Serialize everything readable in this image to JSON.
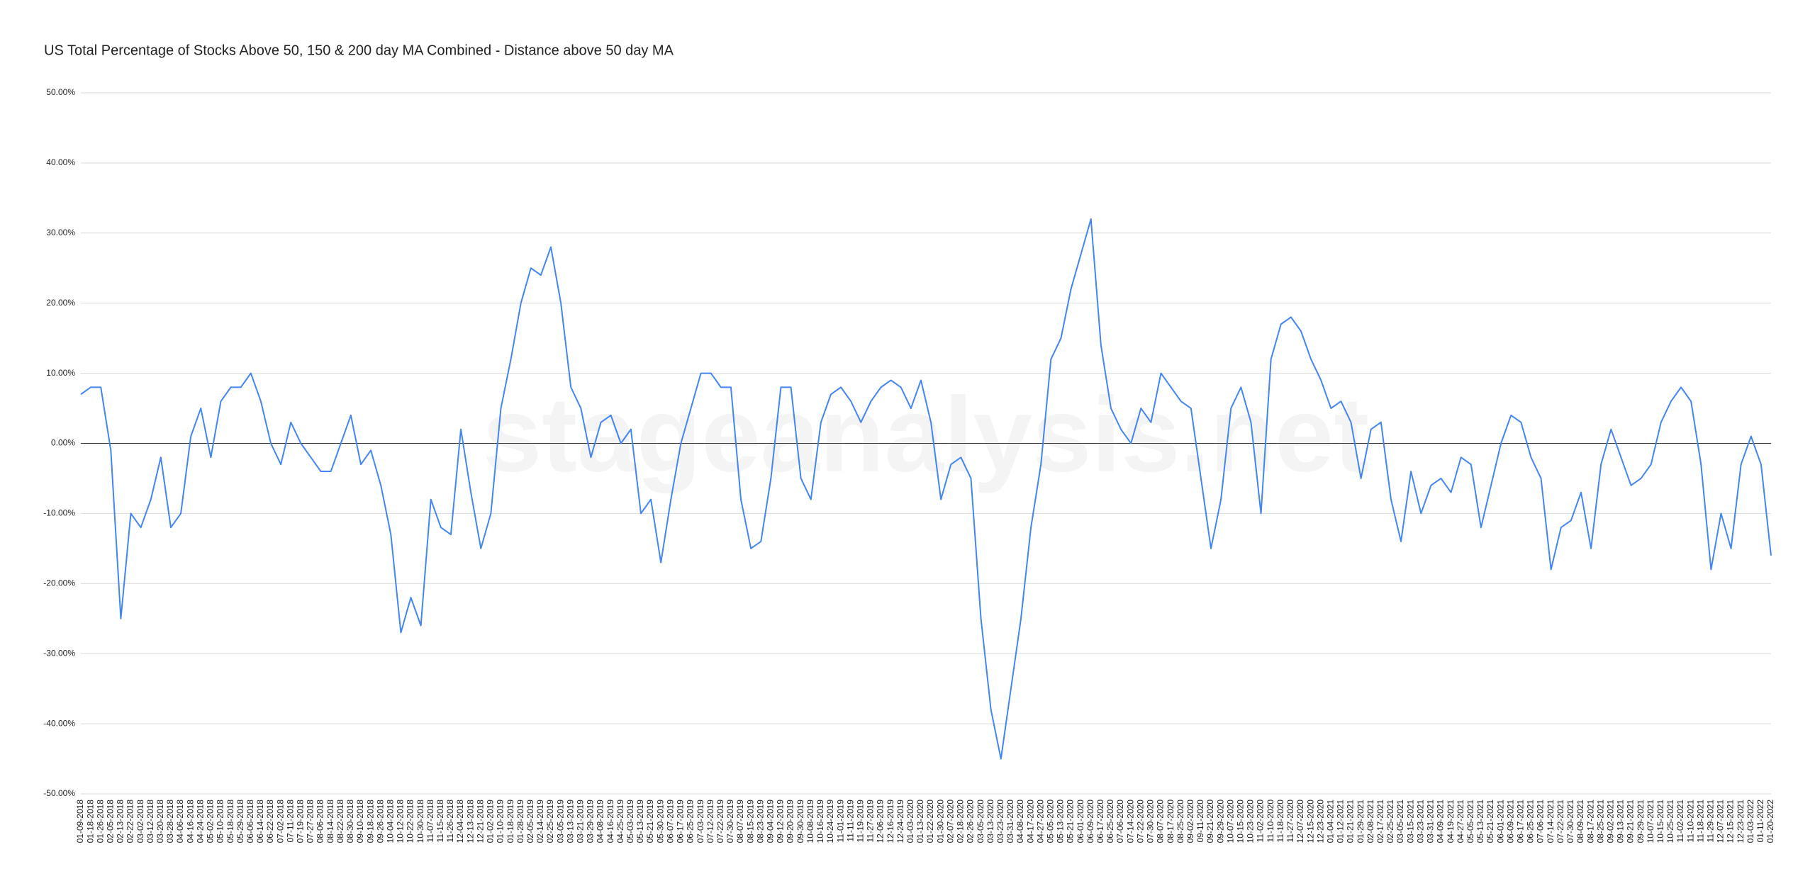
{
  "chart_data": {
    "type": "line",
    "title": "US Total Percentage of Stocks Above 50, 150 & 200 day MA Combined - Distance above 50 day MA",
    "watermark": "stageanalysis.net",
    "categories": [
      "01-09-2018",
      "01-18-2018",
      "01-26-2018",
      "02-05-2018",
      "02-13-2018",
      "02-22-2018",
      "03-02-2018",
      "03-12-2018",
      "03-20-2018",
      "03-28-2018",
      "04-06-2018",
      "04-16-2018",
      "04-24-2018",
      "05-02-2018",
      "05-10-2018",
      "05-18-2018",
      "05-29-2018",
      "06-06-2018",
      "06-14-2018",
      "06-22-2018",
      "07-02-2018",
      "07-11-2018",
      "07-19-2018",
      "07-27-2018",
      "08-06-2018",
      "08-14-2018",
      "08-22-2018",
      "08-30-2018",
      "09-10-2018",
      "09-18-2018",
      "09-26-2018",
      "10-04-2018",
      "10-12-2018",
      "10-22-2018",
      "10-30-2018",
      "11-07-2018",
      "11-15-2018",
      "11-26-2018",
      "12-04-2018",
      "12-13-2018",
      "12-21-2018",
      "01-02-2019",
      "01-10-2019",
      "01-18-2019",
      "01-28-2019",
      "02-05-2019",
      "02-14-2019",
      "02-25-2019",
      "03-05-2019",
      "03-13-2019",
      "03-21-2019",
      "03-29-2019",
      "04-08-2019",
      "04-16-2019",
      "04-25-2019",
      "05-03-2019",
      "05-13-2019",
      "05-21-2019",
      "05-30-2019",
      "06-07-2019",
      "06-17-2019",
      "06-25-2019",
      "07-03-2019",
      "07-12-2019",
      "07-22-2019",
      "07-30-2019",
      "08-07-2019",
      "08-15-2019",
      "08-23-2019",
      "09-04-2019",
      "09-12-2019",
      "09-20-2019",
      "09-30-2019",
      "10-08-2019",
      "10-16-2019",
      "10-24-2019",
      "11-01-2019",
      "11-11-2019",
      "11-19-2019",
      "11-27-2019",
      "12-06-2019",
      "12-16-2019",
      "12-24-2019",
      "01-03-2020",
      "01-13-2020",
      "01-22-2020",
      "01-30-2020",
      "02-07-2020",
      "02-18-2020",
      "02-26-2020",
      "03-05-2020",
      "03-13-2020",
      "03-23-2020",
      "03-31-2020",
      "04-08-2020",
      "04-17-2020",
      "04-27-2020",
      "05-05-2020",
      "05-13-2020",
      "05-21-2020",
      "06-01-2020",
      "06-09-2020",
      "06-17-2020",
      "06-25-2020",
      "07-06-2020",
      "07-14-2020",
      "07-22-2020",
      "07-30-2020",
      "08-07-2020",
      "08-17-2020",
      "08-25-2020",
      "09-02-2020",
      "09-11-2020",
      "09-21-2020",
      "09-29-2020",
      "10-07-2020",
      "10-15-2020",
      "10-23-2020",
      "11-02-2020",
      "11-10-2020",
      "11-18-2020",
      "11-27-2020",
      "12-07-2020",
      "12-15-2020",
      "12-23-2020",
      "01-04-2021",
      "01-12-2021",
      "01-21-2021",
      "01-29-2021",
      "02-08-2021",
      "02-17-2021",
      "02-25-2021",
      "03-05-2021",
      "03-15-2021",
      "03-23-2021",
      "03-31-2021",
      "04-09-2021",
      "04-19-2021",
      "04-27-2021",
      "05-05-2021",
      "05-13-2021",
      "05-21-2021",
      "06-01-2021",
      "06-09-2021",
      "06-17-2021",
      "06-25-2021",
      "07-06-2021",
      "07-14-2021",
      "07-22-2021",
      "07-30-2021",
      "08-09-2021",
      "08-17-2021",
      "08-25-2021",
      "09-02-2021",
      "09-13-2021",
      "09-21-2021",
      "09-29-2021",
      "10-07-2021",
      "10-15-2021",
      "10-25-2021",
      "11-02-2021",
      "11-10-2021",
      "11-18-2021",
      "11-29-2021",
      "12-07-2021",
      "12-15-2021",
      "12-23-2021",
      "01-03-2022",
      "01-11-2022",
      "01-20-2022"
    ],
    "series": [
      {
        "name": "Distance above 50 day MA",
        "color": "#4285f4",
        "values": [
          7,
          8,
          8,
          -1,
          -25,
          -10,
          -12,
          -8,
          -2,
          -12,
          -10,
          1,
          5,
          -2,
          6,
          8,
          8,
          10,
          6,
          0,
          -3,
          3,
          0,
          -2,
          -4,
          -4,
          0,
          4,
          -3,
          -1,
          -6,
          -13,
          -27,
          -22,
          -26,
          -8,
          -12,
          -13,
          2,
          -7,
          -15,
          -10,
          5,
          12,
          20,
          25,
          24,
          28,
          20,
          8,
          5,
          -2,
          3,
          4,
          0,
          2,
          -10,
          -8,
          -17,
          -8,
          0,
          5,
          10,
          10,
          8,
          8,
          -8,
          -15,
          -14,
          -5,
          8,
          8,
          -5,
          -8,
          3,
          7,
          8,
          6,
          3,
          6,
          8,
          9,
          8,
          5,
          9,
          3,
          -8,
          -3,
          -2,
          -5,
          -25,
          -38,
          -45,
          -35,
          -25,
          -12,
          -3,
          12,
          15,
          22,
          27,
          32,
          14,
          5,
          2,
          0,
          5,
          3,
          10,
          8,
          6,
          5,
          -5,
          -15,
          -8,
          5,
          8,
          3,
          -10,
          12,
          17,
          18,
          16,
          12,
          9,
          5,
          6,
          3,
          -5,
          2,
          3,
          -8,
          -14,
          -4,
          -10,
          -6,
          -5,
          -7,
          -2,
          -3,
          -12,
          -6,
          0,
          4,
          3,
          -2,
          -5,
          -18,
          -12,
          -11,
          -7,
          -15,
          -3,
          2,
          -2,
          -6,
          -5,
          -3,
          3,
          6,
          8,
          6,
          -3,
          -18,
          -10,
          -15,
          -3,
          1,
          -3,
          -16
        ]
      }
    ],
    "ylim": [
      -50,
      50
    ],
    "yticks": [
      {
        "value": -50,
        "label": "-50.00%"
      },
      {
        "value": -40,
        "label": "-40.00%"
      },
      {
        "value": -30,
        "label": "-30.00%"
      },
      {
        "value": -20,
        "label": "-20.00%"
      },
      {
        "value": -10,
        "label": "-10.00%"
      },
      {
        "value": 0,
        "label": "0.00%"
      },
      {
        "value": 10,
        "label": "10.00%"
      },
      {
        "value": 20,
        "label": "20.00%"
      },
      {
        "value": 30,
        "label": "30.00%"
      },
      {
        "value": 40,
        "label": "40.00%"
      },
      {
        "value": 50,
        "label": "50.00%"
      }
    ],
    "grid": true
  }
}
